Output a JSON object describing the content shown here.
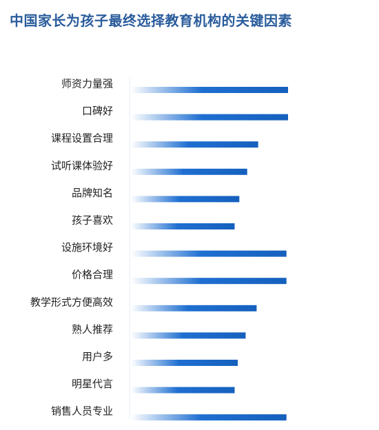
{
  "chart_data": {
    "type": "bar",
    "orientation": "horizontal",
    "title": "中国家长为孩子最终选择教育机构的关键因素",
    "categories": [
      "师资力量强",
      "口碑好",
      "课程设置合理",
      "试听课体验好",
      "品牌知名",
      "孩子喜欢",
      "设施环境好",
      "价格合理",
      "教学形式方便高效",
      "熟人推荐",
      "用户多",
      "明星代言",
      "销售人员专业"
    ],
    "values": [
      100,
      100,
      81,
      74,
      69,
      66,
      99,
      99,
      80,
      73,
      68,
      66,
      99
    ],
    "xlim": [
      0,
      100
    ],
    "grid": false,
    "legend": "none",
    "bar_gradient": [
      "#ffffff",
      "#1f6fd1",
      "#1560bd"
    ]
  }
}
